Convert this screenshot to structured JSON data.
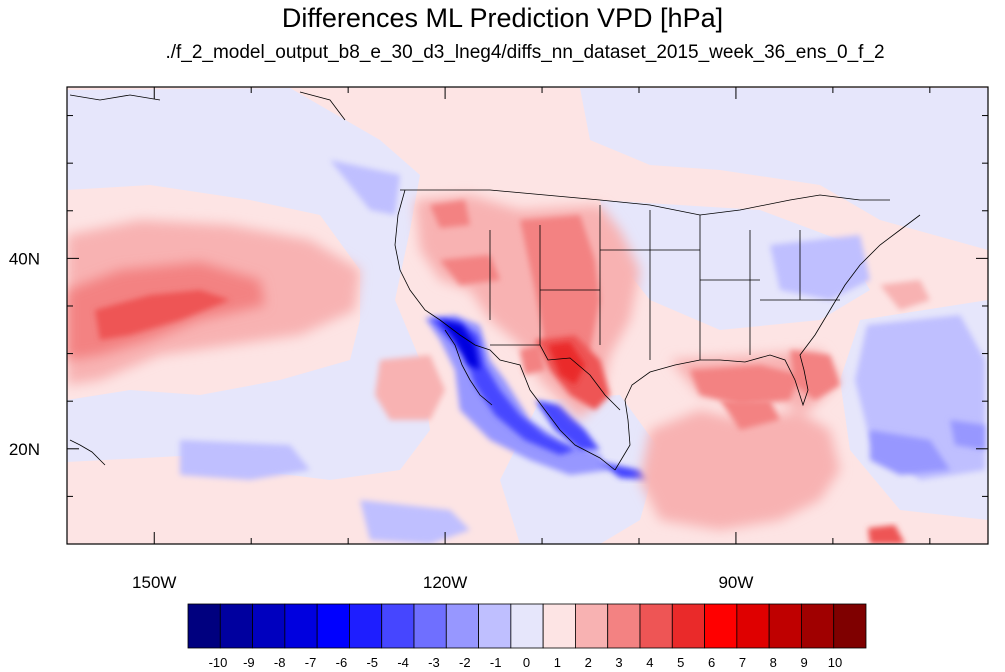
{
  "title": "Differences ML Prediction VPD [hPa]",
  "subtitle": "./f_2_model_output_b8_e_30_d3_lneg4/diffs_nn_dataset_2015_week_36_ens_0_f_2",
  "map": {
    "lon_range": [
      -159,
      -64
    ],
    "lat_range": [
      10,
      58
    ],
    "lon_ticks": [
      {
        "value": -150,
        "label": "150W"
      },
      {
        "value": -120,
        "label": "120W"
      },
      {
        "value": -90,
        "label": "90W"
      }
    ],
    "lat_ticks": [
      {
        "value": 40,
        "label": "40N"
      },
      {
        "value": 20,
        "label": "20N"
      }
    ],
    "colors": {
      "land_boundaries": "#000000",
      "background_field": "#fde4e4"
    }
  },
  "colorbar": {
    "labels": [
      "-10",
      "-9",
      "-8",
      "-7",
      "-6",
      "-5",
      "-4",
      "-3",
      "-2",
      "-1",
      "0",
      "1",
      "2",
      "3",
      "4",
      "5",
      "6",
      "7",
      "8",
      "9",
      "10"
    ],
    "colors": [
      "#00007f",
      "#00009f",
      "#0000bf",
      "#0000df",
      "#0000ff",
      "#1e1eff",
      "#4646ff",
      "#6f6fff",
      "#9797ff",
      "#bfbfff",
      "#e6e6fb",
      "#fde4e4",
      "#f8b2b2",
      "#f38282",
      "#ee5555",
      "#ea2a2a",
      "#ff0000",
      "#df0000",
      "#bf0000",
      "#a00000",
      "#7f0000"
    ]
  }
}
